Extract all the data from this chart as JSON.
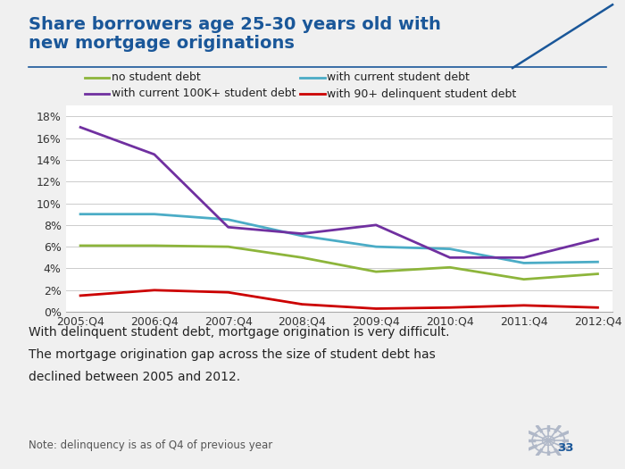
{
  "title_line1": "Share borrowers age 25-30 years old with",
  "title_line2": "new mortgage originations",
  "title_color": "#1a5799",
  "x_labels": [
    "2005:Q4",
    "2006:Q4",
    "2007:Q4",
    "2008:Q4",
    "2009:Q4",
    "2010:Q4",
    "2011:Q4",
    "2012:Q4"
  ],
  "series": {
    "no_student_debt": {
      "label": "no student debt",
      "color": "#8db53b",
      "values": [
        6.1,
        6.1,
        6.0,
        5.0,
        3.7,
        4.1,
        3.0,
        3.5
      ]
    },
    "with_current": {
      "label": "with current student debt",
      "color": "#4bacc6",
      "values": [
        9.0,
        9.0,
        8.5,
        7.0,
        6.0,
        5.8,
        4.5,
        4.6
      ]
    },
    "with_100k": {
      "label": "with current 100K+ student debt",
      "color": "#7030a0",
      "values": [
        17.0,
        14.5,
        7.8,
        7.2,
        8.0,
        5.0,
        5.0,
        6.7
      ]
    },
    "delinquent": {
      "label": "with 90+ delinquent student debt",
      "color": "#cc0000",
      "values": [
        1.5,
        2.0,
        1.8,
        0.7,
        0.3,
        0.4,
        0.6,
        0.4
      ]
    }
  },
  "ylim": [
    0,
    19
  ],
  "yticks": [
    0,
    2,
    4,
    6,
    8,
    10,
    12,
    14,
    16,
    18
  ],
  "ytick_labels": [
    "0%",
    "2%",
    "4%",
    "6%",
    "8%",
    "10%",
    "12%",
    "14%",
    "16%",
    "18%"
  ],
  "annotation_line1": "With delinquent student debt, mortgage origination is very difficult.",
  "annotation_line2": "The mortgage origination gap across the size of student debt has",
  "annotation_line3": "declined between 2005 and 2012.",
  "note": "Note: delinquency is as of Q4 of previous year",
  "page_number": "33",
  "bg_color": "#f0f0f0",
  "plot_bg_color": "#ffffff",
  "separator_color": "#1a5799",
  "line_width": 2.0
}
